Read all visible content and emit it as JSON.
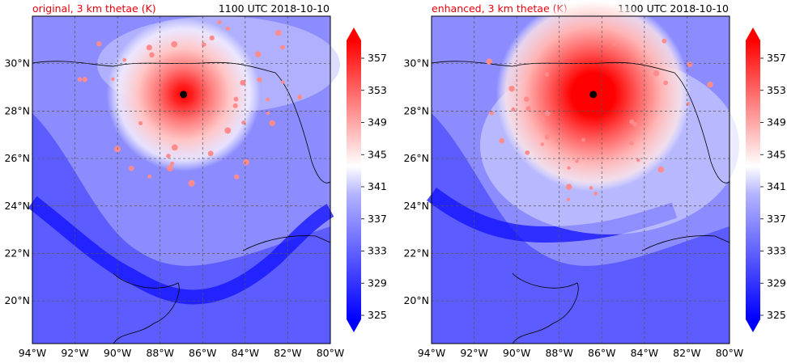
{
  "panels": [
    {
      "title_left": "original, 3 km thetae (K)",
      "title_right": "1100 UTC 2018-10-10",
      "storm_center": {
        "lon": -86.9,
        "lat": 28.7
      },
      "eyewall_intensity": "moderate"
    },
    {
      "title_left": "enhanced, 3 km thetae (K)",
      "title_right": "1100 UTC 2018-10-10",
      "storm_center": {
        "lon": -86.4,
        "lat": 28.7
      },
      "eyewall_intensity": "strong"
    }
  ],
  "map": {
    "lon_range": [
      -94,
      -80
    ],
    "lat_range": [
      18.2,
      32
    ],
    "lon_ticks": [
      "94°W",
      "92°W",
      "90°W",
      "88°W",
      "86°W",
      "84°W",
      "82°W",
      "80°W"
    ],
    "lat_ticks": [
      "20°N",
      "22°N",
      "24°N",
      "26°N",
      "28°N",
      "30°N"
    ]
  },
  "colorbar": {
    "labels": [
      "357",
      "353",
      "349",
      "345",
      "341",
      "337",
      "333",
      "329",
      "325"
    ],
    "min": 325,
    "max": 359,
    "colors": {
      "low": "#0000ff",
      "mid": "#ffffff",
      "high": "#ff0000"
    }
  },
  "colors": {
    "title_accent": "#e8000b",
    "storm_center": "#000000"
  }
}
